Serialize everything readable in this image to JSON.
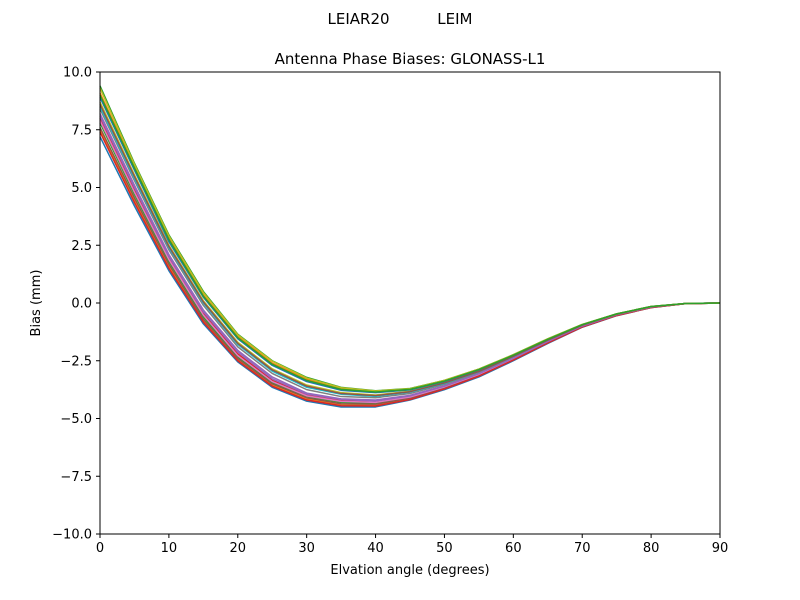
{
  "chart_data": {
    "type": "line",
    "suptitle": "LEIAR20          LEIM",
    "title": "Antenna Phase Biases: GLONASS-L1",
    "xlabel": "Elvation angle (degrees)",
    "ylabel": "Bias (mm)",
    "xlim": [
      0,
      90
    ],
    "ylim": [
      -10,
      10
    ],
    "xticks": [
      0,
      10,
      20,
      30,
      40,
      50,
      60,
      70,
      80,
      90
    ],
    "xtick_labels": [
      "0",
      "10",
      "20",
      "30",
      "40",
      "50",
      "60",
      "70",
      "80",
      "90"
    ],
    "yticks": [
      -10,
      -7.5,
      -5,
      -2.5,
      0,
      2.5,
      5,
      7.5,
      10
    ],
    "ytick_labels": [
      "−10.0",
      "−7.5",
      "−5.0",
      "−2.5",
      "0.0",
      "2.5",
      "5.0",
      "7.5",
      "10.0"
    ],
    "grid": false,
    "x": [
      0,
      5,
      10,
      15,
      20,
      25,
      30,
      35,
      40,
      45,
      50,
      55,
      60,
      65,
      70,
      75,
      80,
      85,
      90
    ],
    "series": [
      {
        "color": "#1f77b4",
        "values": [
          7.2,
          4.2,
          1.4,
          -0.9,
          -2.55,
          -3.65,
          -4.25,
          -4.5,
          -4.5,
          -4.2,
          -3.75,
          -3.2,
          -2.5,
          -1.75,
          -1.05,
          -0.55,
          -0.2,
          -0.03,
          0.0
        ]
      },
      {
        "color": "#ff7f0e",
        "values": [
          7.5,
          4.45,
          1.6,
          -0.75,
          -2.45,
          -3.55,
          -4.15,
          -4.4,
          -4.42,
          -4.15,
          -3.7,
          -3.15,
          -2.45,
          -1.72,
          -1.03,
          -0.54,
          -0.19,
          -0.03,
          0.0
        ]
      },
      {
        "color": "#2ca02c",
        "values": [
          7.8,
          4.7,
          1.8,
          -0.6,
          -2.35,
          -3.45,
          -4.05,
          -4.3,
          -4.35,
          -4.1,
          -3.65,
          -3.1,
          -2.42,
          -1.7,
          -1.02,
          -0.53,
          -0.19,
          -0.03,
          0.0
        ]
      },
      {
        "color": "#d62728",
        "values": [
          8.0,
          4.9,
          1.95,
          -0.45,
          -2.2,
          -3.35,
          -3.98,
          -4.22,
          -4.28,
          -4.05,
          -3.62,
          -3.08,
          -2.4,
          -1.68,
          -1.0,
          -0.52,
          -0.18,
          -0.02,
          0.0
        ]
      },
      {
        "color": "#9467bd",
        "values": [
          8.2,
          5.1,
          2.1,
          -0.3,
          -2.05,
          -3.2,
          -3.9,
          -4.15,
          -4.2,
          -4.0,
          -3.58,
          -3.05,
          -2.38,
          -1.66,
          -0.99,
          -0.51,
          -0.18,
          -0.02,
          0.0
        ]
      },
      {
        "color": "#8c564b",
        "values": [
          7.6,
          4.55,
          1.68,
          -0.7,
          -2.4,
          -3.5,
          -4.1,
          -4.36,
          -4.38,
          -4.12,
          -3.68,
          -3.12,
          -2.44,
          -1.71,
          -1.02,
          -0.53,
          -0.19,
          -0.03,
          0.0
        ]
      },
      {
        "color": "#e377c2",
        "values": [
          7.9,
          4.8,
          1.88,
          -0.52,
          -2.28,
          -3.4,
          -4.02,
          -4.26,
          -4.3,
          -4.07,
          -3.63,
          -3.09,
          -2.41,
          -1.69,
          -1.01,
          -0.52,
          -0.18,
          -0.02,
          0.0
        ]
      },
      {
        "color": "#7f7f7f",
        "values": [
          8.4,
          5.3,
          2.3,
          -0.1,
          -1.9,
          -3.05,
          -3.75,
          -4.05,
          -4.1,
          -3.92,
          -3.52,
          -3.0,
          -2.35,
          -1.64,
          -0.98,
          -0.5,
          -0.17,
          -0.02,
          0.0
        ]
      },
      {
        "color": "#bcbd22",
        "values": [
          8.7,
          5.55,
          2.5,
          0.1,
          -1.7,
          -2.85,
          -3.55,
          -3.88,
          -3.98,
          -3.82,
          -3.45,
          -2.95,
          -2.3,
          -1.6,
          -0.96,
          -0.49,
          -0.16,
          -0.02,
          0.0
        ]
      },
      {
        "color": "#17becf",
        "values": [
          8.5,
          5.4,
          2.4,
          0.0,
          -1.8,
          -2.95,
          -3.65,
          -3.95,
          -4.04,
          -3.86,
          -3.48,
          -2.97,
          -2.32,
          -1.62,
          -0.97,
          -0.49,
          -0.17,
          -0.02,
          0.0
        ]
      },
      {
        "color": "#1f77b4",
        "values": [
          8.9,
          5.75,
          2.65,
          0.25,
          -1.55,
          -2.7,
          -3.4,
          -3.78,
          -3.88,
          -3.76,
          -3.4,
          -2.9,
          -2.27,
          -1.58,
          -0.95,
          -0.48,
          -0.16,
          -0.02,
          0.0
        ]
      },
      {
        "color": "#ff7f0e",
        "values": [
          9.1,
          5.9,
          2.8,
          0.35,
          -1.45,
          -2.6,
          -3.3,
          -3.7,
          -3.82,
          -3.72,
          -3.36,
          -2.87,
          -2.25,
          -1.56,
          -0.94,
          -0.47,
          -0.15,
          -0.02,
          0.0
        ]
      },
      {
        "color": "#2ca02c",
        "values": [
          9.4,
          6.05,
          2.95,
          0.5,
          -1.35,
          -2.5,
          -3.22,
          -3.65,
          -3.8,
          -3.7,
          -3.35,
          -2.86,
          -2.24,
          -1.55,
          -0.93,
          -0.47,
          -0.15,
          -0.02,
          0.0
        ]
      },
      {
        "color": "#d62728",
        "values": [
          7.4,
          4.35,
          1.5,
          -0.82,
          -2.5,
          -3.6,
          -4.2,
          -4.45,
          -4.46,
          -4.18,
          -3.72,
          -3.17,
          -2.47,
          -1.73,
          -1.04,
          -0.54,
          -0.2,
          -0.03,
          0.0
        ]
      },
      {
        "color": "#9467bd",
        "values": [
          8.1,
          5.0,
          2.02,
          -0.38,
          -2.12,
          -3.28,
          -3.94,
          -4.18,
          -4.24,
          -4.02,
          -3.6,
          -3.06,
          -2.39,
          -1.67,
          -1.0,
          -0.51,
          -0.18,
          -0.02,
          0.0
        ]
      },
      {
        "color": "#8c564b",
        "values": [
          8.6,
          5.48,
          2.45,
          0.05,
          -1.75,
          -2.9,
          -3.6,
          -3.92,
          -4.01,
          -3.84,
          -3.46,
          -2.96,
          -2.31,
          -1.61,
          -0.96,
          -0.49,
          -0.16,
          -0.02,
          0.0
        ]
      },
      {
        "color": "#bcbd22",
        "values": [
          9.3,
          6.0,
          2.9,
          0.45,
          -1.38,
          -2.52,
          -3.25,
          -3.67,
          -3.81,
          -3.71,
          -3.35,
          -2.86,
          -2.24,
          -1.55,
          -0.93,
          -0.47,
          -0.15,
          -0.02,
          0.0
        ]
      },
      {
        "color": "#2ca02c",
        "values": [
          9.0,
          5.85,
          2.75,
          0.3,
          -1.5,
          -2.65,
          -3.35,
          -3.74,
          -3.85,
          -3.74,
          -3.38,
          -2.88,
          -2.26,
          -1.57,
          -0.94,
          -0.47,
          -0.15,
          -0.02,
          0.0
        ]
      }
    ]
  }
}
